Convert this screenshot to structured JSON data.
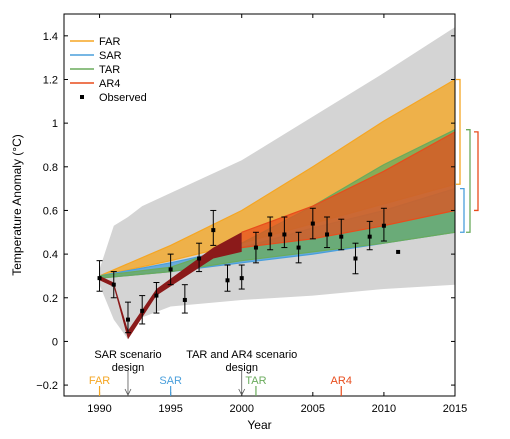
{
  "chart_data": {
    "type": "area",
    "title": "",
    "xlabel": "Year",
    "ylabel": "Temperature Anomaly (°C)",
    "xlim": [
      1987.5,
      2015
    ],
    "ylim": [
      -0.25,
      1.5
    ],
    "x_ticks": [
      1990,
      1995,
      2000,
      2005,
      2010,
      2015
    ],
    "y_ticks": [
      -0.2,
      0,
      0.2,
      0.4,
      0.6,
      0.8,
      1,
      1.2,
      1.4
    ],
    "y_tick_labels": [
      "−0.2",
      "0",
      "0.2",
      "0.4",
      "0.6",
      "0.8",
      "1",
      "1.2",
      "1.4"
    ],
    "legend": {
      "placement": "top-left",
      "entries": [
        {
          "label": "FAR",
          "color": "#f5a623",
          "kind": "line"
        },
        {
          "label": "SAR",
          "color": "#4a9fdc",
          "kind": "line"
        },
        {
          "label": "TAR",
          "color": "#6aab5c",
          "kind": "line"
        },
        {
          "label": "AR4",
          "color": "#e84c1c",
          "kind": "line"
        },
        {
          "label": "Observed",
          "color": "#000000",
          "kind": "marker"
        }
      ]
    },
    "envelope": {
      "color": "#d4d4d4",
      "x": [
        1990,
        1991,
        1992,
        1993,
        1995,
        2000,
        2005,
        2010,
        2015
      ],
      "upper": [
        0.33,
        0.53,
        0.57,
        0.62,
        0.68,
        0.83,
        1.03,
        1.23,
        1.44
      ],
      "lower": [
        0.26,
        0.1,
        0.01,
        0.11,
        0.16,
        0.19,
        0.21,
        0.24,
        0.26
      ]
    },
    "series": [
      {
        "name": "FAR",
        "color": "#f5a623",
        "x": [
          1990,
          1995,
          2000,
          2005,
          2010,
          2015
        ],
        "upper": [
          0.3,
          0.44,
          0.6,
          0.8,
          1.01,
          1.2
        ],
        "lower": [
          0.3,
          0.37,
          0.45,
          0.54,
          0.63,
          0.72
        ]
      },
      {
        "name": "SAR",
        "color": "#4a9fdc",
        "x": [
          1990,
          1995,
          2000,
          2005,
          2010,
          2015
        ],
        "upper": [
          0.3,
          0.36,
          0.43,
          0.52,
          0.6,
          0.7
        ],
        "lower": [
          0.29,
          0.32,
          0.36,
          0.4,
          0.45,
          0.5
        ]
      },
      {
        "name": "TAR",
        "color": "#6aab5c",
        "x": [
          1990,
          1995,
          2000,
          2005,
          2010,
          2015
        ],
        "upper": [
          0.3,
          0.34,
          0.45,
          0.62,
          0.81,
          0.97
        ],
        "lower": [
          0.29,
          0.32,
          0.37,
          0.41,
          0.45,
          0.5
        ]
      },
      {
        "name": "AR4",
        "color": "#e84c1c",
        "x": [
          2000,
          2005,
          2010,
          2015
        ],
        "upper": [
          0.5,
          0.62,
          0.78,
          0.96
        ],
        "lower": [
          0.43,
          0.47,
          0.53,
          0.6
        ]
      }
    ],
    "volcanic_path": {
      "color": "#8b1a1a",
      "x": [
        1990,
        1991,
        1992,
        1994,
        1998,
        2000
      ],
      "upper": [
        0.3,
        0.27,
        0.05,
        0.24,
        0.43,
        0.5
      ],
      "lower": [
        0.28,
        0.25,
        0.01,
        0.21,
        0.38,
        0.41
      ]
    },
    "observed": [
      {
        "x": 1990.0,
        "y": 0.29,
        "ylo": 0.23,
        "yhi": 0.37
      },
      {
        "x": 1991.0,
        "y": 0.26,
        "ylo": 0.2,
        "yhi": 0.32
      },
      {
        "x": 1992.0,
        "y": 0.1,
        "ylo": 0.04,
        "yhi": 0.18
      },
      {
        "x": 1993.0,
        "y": 0.14,
        "ylo": 0.08,
        "yhi": 0.21
      },
      {
        "x": 1994.0,
        "y": 0.21,
        "ylo": 0.13,
        "yhi": 0.27
      },
      {
        "x": 1995.0,
        "y": 0.33,
        "ylo": 0.26,
        "yhi": 0.4
      },
      {
        "x": 1996.0,
        "y": 0.19,
        "ylo": 0.13,
        "yhi": 0.26
      },
      {
        "x": 1997.0,
        "y": 0.38,
        "ylo": 0.32,
        "yhi": 0.45
      },
      {
        "x": 1998.0,
        "y": 0.51,
        "ylo": 0.44,
        "yhi": 0.6
      },
      {
        "x": 1999.0,
        "y": 0.28,
        "ylo": 0.23,
        "yhi": 0.35
      },
      {
        "x": 2000.0,
        "y": 0.29,
        "ylo": 0.24,
        "yhi": 0.35
      },
      {
        "x": 2001.0,
        "y": 0.43,
        "ylo": 0.36,
        "yhi": 0.5
      },
      {
        "x": 2002.0,
        "y": 0.49,
        "ylo": 0.42,
        "yhi": 0.57
      },
      {
        "x": 2003.0,
        "y": 0.49,
        "ylo": 0.43,
        "yhi": 0.57
      },
      {
        "x": 2004.0,
        "y": 0.43,
        "ylo": 0.36,
        "yhi": 0.5
      },
      {
        "x": 2005.0,
        "y": 0.54,
        "ylo": 0.47,
        "yhi": 0.61
      },
      {
        "x": 2006.0,
        "y": 0.49,
        "ylo": 0.43,
        "yhi": 0.57
      },
      {
        "x": 2007.0,
        "y": 0.48,
        "ylo": 0.42,
        "yhi": 0.56
      },
      {
        "x": 2008.0,
        "y": 0.38,
        "ylo": 0.31,
        "yhi": 0.45
      },
      {
        "x": 2009.0,
        "y": 0.48,
        "ylo": 0.42,
        "yhi": 0.55
      },
      {
        "x": 2010.0,
        "y": 0.53,
        "ylo": 0.46,
        "yhi": 0.61
      },
      {
        "x": 2011.0,
        "y": 0.41,
        "ylo": null,
        "yhi": null
      }
    ],
    "report_markers": [
      {
        "label": "FAR",
        "year": 1990,
        "color": "#f5a623"
      },
      {
        "label": "SAR",
        "year": 1995,
        "color": "#4a9fdc"
      },
      {
        "label": "TAR",
        "year": 2001,
        "color": "#6aab5c"
      },
      {
        "label": "AR4",
        "year": 2007,
        "color": "#e84c1c"
      }
    ],
    "annotations": [
      {
        "lines": [
          "SAR scenario",
          "design"
        ],
        "year": 1992
      },
      {
        "lines": [
          "TAR and AR4 scenario",
          "design"
        ],
        "year": 2000
      }
    ],
    "range_brackets": [
      {
        "name": "FAR",
        "color": "#f5a623",
        "range": [
          0.72,
          1.2
        ]
      },
      {
        "name": "TAR",
        "color": "#6aab5c",
        "range": [
          0.5,
          0.97
        ]
      },
      {
        "name": "SAR",
        "color": "#4a9fdc",
        "range": [
          0.5,
          0.7
        ]
      },
      {
        "name": "AR4",
        "color": "#e84c1c",
        "range": [
          0.6,
          0.96
        ]
      }
    ]
  }
}
